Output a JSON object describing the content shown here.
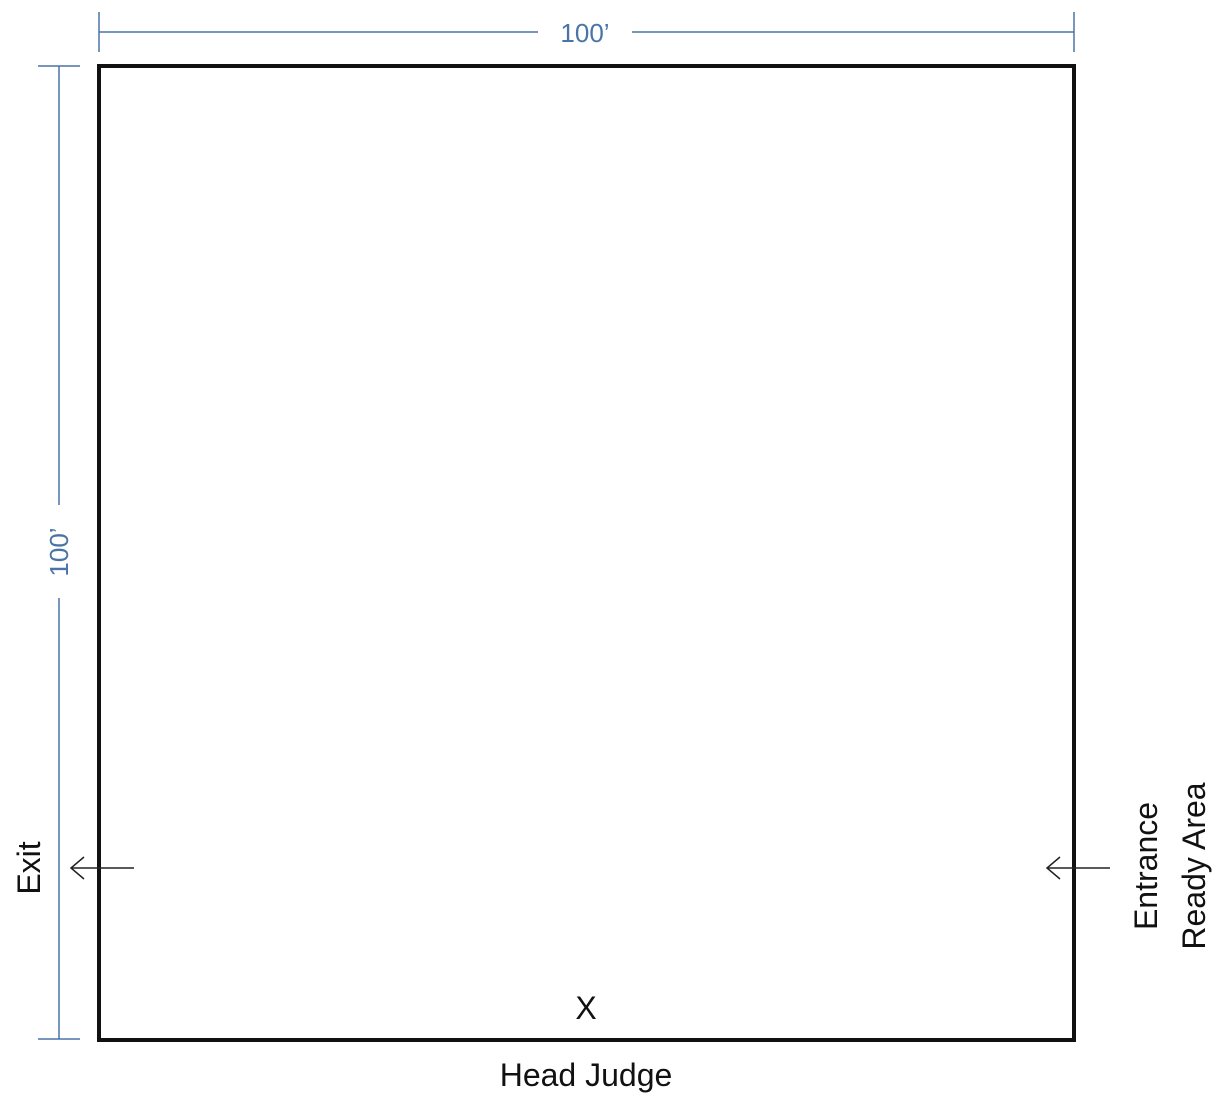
{
  "colors": {
    "dimension": "#4a74a8",
    "outline": "#111111",
    "arrow": "#222222",
    "background": "#ffffff"
  },
  "dimensions": {
    "width_label": "100’",
    "height_label": "100’"
  },
  "labels": {
    "exit": "Exit",
    "entrance": "Entrance",
    "ready_area": "Ready Area",
    "judge_marker": "X",
    "head_judge": "Head Judge"
  },
  "icons": {
    "exit_arrow": "arrow-left-icon",
    "entrance_arrow": "arrow-left-icon"
  }
}
